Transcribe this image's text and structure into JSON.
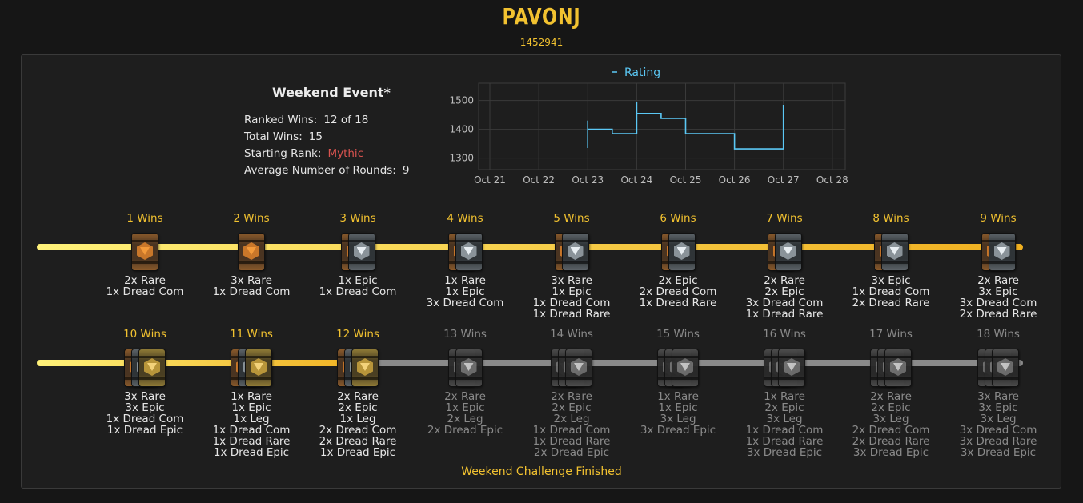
{
  "player": {
    "name": "PAVONJ",
    "id": "1452941"
  },
  "event": {
    "title": "Weekend Event*",
    "stats": [
      {
        "label": "Ranked Wins:",
        "value": "12 of 18"
      },
      {
        "label": "Total Wins:",
        "value": "15"
      },
      {
        "label": "Starting Rank:",
        "value": "Mythic"
      },
      {
        "label": "Average Number of Rounds:",
        "value": "9"
      }
    ]
  },
  "chart_data": {
    "type": "line",
    "title": "",
    "legend": "Rating",
    "legend_position": "top",
    "series_color": "#5bc8f5",
    "xlabel": "",
    "ylabel": "",
    "x_ticks": [
      "Oct 21",
      "Oct 22",
      "Oct 23",
      "Oct 24",
      "Oct 25",
      "Oct 26",
      "Oct 27",
      "Oct 28"
    ],
    "y_ticks": [
      1300,
      1400,
      1500
    ],
    "ylim": [
      1260,
      1560
    ],
    "grid": true,
    "series": [
      {
        "name": "Rating",
        "points": [
          [
            "Oct 23",
            1335
          ],
          [
            "Oct 23",
            1430
          ],
          [
            "Oct 23",
            1400
          ],
          [
            "Oct 23 12:00",
            1400
          ],
          [
            "Oct 23 12:00",
            1385
          ],
          [
            "Oct 24",
            1385
          ],
          [
            "Oct 24",
            1495
          ],
          [
            "Oct 24",
            1455
          ],
          [
            "Oct 24 12:00",
            1455
          ],
          [
            "Oct 24 12:00",
            1438
          ],
          [
            "Oct 25",
            1438
          ],
          [
            "Oct 25",
            1385
          ],
          [
            "Oct 26",
            1385
          ],
          [
            "Oct 26",
            1332
          ],
          [
            "Oct 27",
            1332
          ],
          [
            "Oct 27",
            1485
          ],
          [
            "Oct 27",
            1470
          ]
        ]
      }
    ]
  },
  "rewards": [
    {
      "wins": "1 Wins",
      "achieved": true,
      "packs": [
        "rare"
      ],
      "items": [
        "2x Rare",
        "1x Dread Com"
      ]
    },
    {
      "wins": "2 Wins",
      "achieved": true,
      "packs": [
        "rare"
      ],
      "items": [
        "3x Rare",
        "1x Dread Com"
      ]
    },
    {
      "wins": "3 Wins",
      "achieved": true,
      "packs": [
        "rare",
        "epic"
      ],
      "items": [
        "1x Epic",
        "1x Dread Com"
      ]
    },
    {
      "wins": "4 Wins",
      "achieved": true,
      "packs": [
        "rare",
        "epic"
      ],
      "items": [
        "1x Rare",
        "1x Epic",
        "3x Dread Com"
      ]
    },
    {
      "wins": "5 Wins",
      "achieved": true,
      "packs": [
        "rare",
        "epic"
      ],
      "items": [
        "3x Rare",
        "1x Epic",
        "1x Dread Com",
        "1x Dread Rare"
      ]
    },
    {
      "wins": "6 Wins",
      "achieved": true,
      "packs": [
        "rare",
        "epic"
      ],
      "items": [
        "2x Epic",
        "2x Dread Com",
        "1x Dread Rare"
      ]
    },
    {
      "wins": "7 Wins",
      "achieved": true,
      "packs": [
        "rare",
        "epic"
      ],
      "items": [
        "2x Rare",
        "2x Epic",
        "3x Dread Com",
        "1x Dread Rare"
      ]
    },
    {
      "wins": "8 Wins",
      "achieved": true,
      "packs": [
        "rare",
        "epic"
      ],
      "items": [
        "3x Epic",
        "1x Dread Com",
        "2x Dread Rare"
      ]
    },
    {
      "wins": "9 Wins",
      "achieved": true,
      "packs": [
        "rare",
        "epic"
      ],
      "items": [
        "2x Rare",
        "3x Epic",
        "3x Dread Com",
        "2x Dread Rare"
      ]
    },
    {
      "wins": "10 Wins",
      "achieved": true,
      "packs": [
        "rare",
        "epic",
        "leg"
      ],
      "items": [
        "3x Rare",
        "3x Epic",
        "1x Dread Com",
        "1x Dread Epic"
      ]
    },
    {
      "wins": "11 Wins",
      "achieved": true,
      "packs": [
        "rare",
        "epic",
        "leg"
      ],
      "items": [
        "1x Rare",
        "1x Epic",
        "1x Leg",
        "1x Dread Com",
        "1x Dread Rare",
        "1x Dread Epic"
      ]
    },
    {
      "wins": "12 Wins",
      "achieved": true,
      "packs": [
        "rare",
        "epic",
        "leg"
      ],
      "items": [
        "2x Rare",
        "2x Epic",
        "1x Leg",
        "2x Dread Com",
        "2x Dread Rare",
        "1x Dread Epic"
      ]
    },
    {
      "wins": "13 Wins",
      "achieved": false,
      "packs": [
        "grey",
        "grey"
      ],
      "items": [
        "2x Rare",
        "1x Epic",
        "2x Leg",
        "2x Dread Epic"
      ]
    },
    {
      "wins": "14 Wins",
      "achieved": false,
      "packs": [
        "grey",
        "grey",
        "grey"
      ],
      "items": [
        "2x Rare",
        "2x Epic",
        "2x Leg",
        "1x Dread Com",
        "1x Dread Rare",
        "2x Dread Epic"
      ]
    },
    {
      "wins": "15 Wins",
      "achieved": false,
      "packs": [
        "grey",
        "grey",
        "grey"
      ],
      "items": [
        "1x Rare",
        "1x Epic",
        "3x Leg",
        "3x Dread Epic"
      ]
    },
    {
      "wins": "16 Wins",
      "achieved": false,
      "packs": [
        "grey",
        "grey",
        "grey"
      ],
      "items": [
        "1x Rare",
        "2x Epic",
        "3x Leg",
        "1x Dread Com",
        "1x Dread Rare",
        "3x Dread Epic"
      ]
    },
    {
      "wins": "17 Wins",
      "achieved": false,
      "packs": [
        "grey",
        "grey",
        "grey"
      ],
      "items": [
        "2x Rare",
        "2x Epic",
        "3x Leg",
        "2x Dread Com",
        "2x Dread Rare",
        "3x Dread Epic"
      ]
    },
    {
      "wins": "18 Wins",
      "achieved": false,
      "packs": [
        "grey",
        "grey",
        "grey"
      ],
      "items": [
        "3x Rare",
        "3x Epic",
        "3x Leg",
        "3x Dread Com",
        "3x Dread Rare",
        "3x Dread Epic"
      ]
    }
  ],
  "footer": {
    "status": "Weekend Challenge Finished"
  },
  "colors": {
    "gold": "#f2c230",
    "mythic": "#d9534f",
    "rating_line": "#5bc8f5",
    "track_active": "#f5c842",
    "track_inactive": "#8a8a8a"
  }
}
